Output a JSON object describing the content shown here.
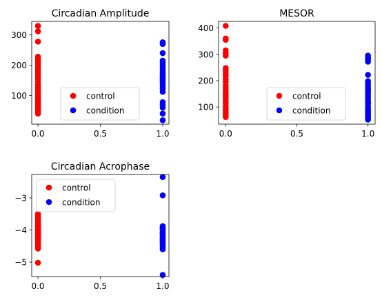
{
  "chart_data": [
    {
      "type": "scatter",
      "title": "Circadian Amplitude",
      "xlabel": "",
      "ylabel": "",
      "xlim": [
        -0.05,
        1.05
      ],
      "ylim": [
        5,
        345
      ],
      "xticks": [
        0.0,
        0.5,
        1.0
      ],
      "xtick_labels": [
        "0.0",
        "0.5",
        "1.0"
      ],
      "yticks": [
        100,
        200,
        300
      ],
      "ytick_labels": [
        "100",
        "200",
        "300"
      ],
      "legend_position": "lower-right",
      "series": [
        {
          "name": "control",
          "color": "#ff0000",
          "x": [
            0,
            0,
            0,
            0,
            0,
            0,
            0,
            0,
            0,
            0,
            0,
            0,
            0,
            0,
            0,
            0,
            0,
            0,
            0,
            0,
            0,
            0,
            0,
            0,
            0,
            0,
            0,
            0
          ],
          "y": [
            330,
            312,
            278,
            228,
            220,
            212,
            205,
            196,
            188,
            180,
            172,
            164,
            155,
            145,
            135,
            126,
            118,
            110,
            102,
            95,
            88,
            80,
            72,
            66,
            58,
            52,
            45,
            40
          ]
        },
        {
          "name": "condition",
          "color": "#0000ff",
          "x": [
            1,
            1,
            1,
            1,
            1,
            1,
            1,
            1,
            1,
            1,
            1,
            1,
            1,
            1,
            1,
            1,
            1,
            1,
            1,
            1,
            1,
            1,
            1,
            1,
            1
          ],
          "y": [
            276,
            270,
            240,
            208,
            200,
            192,
            185,
            176,
            170,
            160,
            152,
            145,
            138,
            130,
            122,
            78,
            70,
            60,
            40,
            18,
            215,
            168,
            156,
            148,
            112
          ]
        }
      ]
    },
    {
      "type": "scatter",
      "title": "MESOR",
      "xlabel": "",
      "ylabel": "",
      "xlim": [
        -0.05,
        1.05
      ],
      "ylim": [
        35,
        425
      ],
      "xticks": [
        0.0,
        0.5,
        1.0
      ],
      "xtick_labels": [
        "0.0",
        "0.5",
        "1.0"
      ],
      "yticks": [
        100,
        200,
        300,
        400
      ],
      "ytick_labels": [
        "100",
        "200",
        "300",
        "400"
      ],
      "legend_position": "lower-right",
      "series": [
        {
          "name": "control",
          "color": "#ff0000",
          "x": [
            0,
            0,
            0,
            0,
            0,
            0,
            0,
            0,
            0,
            0,
            0,
            0,
            0,
            0,
            0,
            0,
            0,
            0,
            0,
            0,
            0,
            0,
            0,
            0,
            0,
            0,
            0,
            0
          ],
          "y": [
            408,
            360,
            355,
            315,
            305,
            295,
            248,
            238,
            228,
            218,
            205,
            195,
            182,
            172,
            162,
            152,
            145,
            135,
            125,
            115,
            105,
            98,
            90,
            82,
            75,
            68,
            62,
            140
          ]
        },
        {
          "name": "condition",
          "color": "#0000ff",
          "x": [
            1,
            1,
            1,
            1,
            1,
            1,
            1,
            1,
            1,
            1,
            1,
            1,
            1,
            1,
            1,
            1,
            1,
            1,
            1,
            1,
            1,
            1,
            1,
            1,
            1
          ],
          "y": [
            295,
            288,
            280,
            272,
            222,
            198,
            190,
            180,
            172,
            162,
            152,
            142,
            132,
            122,
            112,
            100,
            92,
            85,
            78,
            72,
            65,
            58,
            52,
            168,
            118
          ]
        }
      ]
    },
    {
      "type": "scatter",
      "title": "Circadian Acrophase",
      "xlabel": "",
      "ylabel": "",
      "xlim": [
        -0.05,
        1.05
      ],
      "ylim": [
        -5.45,
        -2.27
      ],
      "xticks": [
        0.0,
        0.5,
        1.0
      ],
      "xtick_labels": [
        "0.0",
        "0.5",
        "1.0"
      ],
      "yticks": [
        -3,
        -4,
        -5
      ],
      "ytick_labels": [
        "−3",
        "−4",
        "−5"
      ],
      "legend_position": "upper-left",
      "series": [
        {
          "name": "control",
          "color": "#ff0000",
          "x": [
            0,
            0,
            0,
            0,
            0,
            0,
            0,
            0,
            0,
            0,
            0,
            0,
            0,
            0,
            0,
            0,
            0,
            0,
            0,
            0,
            0,
            0,
            0,
            0,
            0,
            0,
            0,
            0
          ],
          "y": [
            -3.5,
            -3.55,
            -3.6,
            -3.65,
            -3.7,
            -3.75,
            -3.8,
            -3.85,
            -3.9,
            -3.95,
            -4.0,
            -4.02,
            -4.05,
            -4.08,
            -4.1,
            -4.12,
            -4.15,
            -4.18,
            -4.2,
            -4.25,
            -4.3,
            -4.35,
            -4.4,
            -4.45,
            -4.52,
            -4.58,
            -5.02,
            -3.88
          ]
        },
        {
          "name": "condition",
          "color": "#0000ff",
          "x": [
            1,
            1,
            1,
            1,
            1,
            1,
            1,
            1,
            1,
            1,
            1,
            1,
            1,
            1,
            1,
            1,
            1,
            1,
            1,
            1,
            1,
            1,
            1,
            1,
            1
          ],
          "y": [
            -2.35,
            -2.92,
            -3.88,
            -3.92,
            -3.95,
            -4.0,
            -4.05,
            -4.08,
            -4.12,
            -4.15,
            -4.2,
            -4.25,
            -4.28,
            -4.32,
            -4.35,
            -4.4,
            -4.45,
            -4.5,
            -4.55,
            -4.6,
            -5.4,
            -3.98,
            -4.1,
            -4.22,
            -4.38
          ]
        }
      ]
    }
  ]
}
